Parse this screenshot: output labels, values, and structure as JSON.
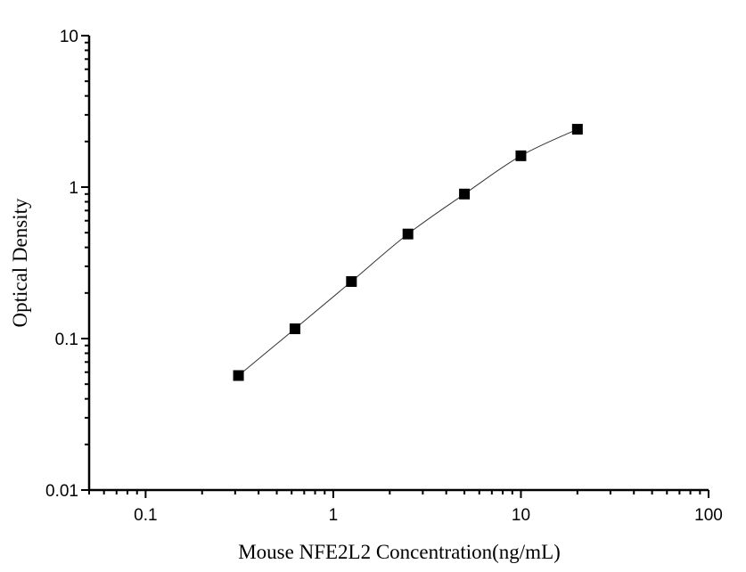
{
  "chart_data": {
    "type": "scatter",
    "title": "",
    "xlabel": "Mouse NFE2L2 Concentration(ng/mL)",
    "ylabel": "Optical Density",
    "xscale": "log",
    "yscale": "log",
    "xlim": [
      0.05,
      100
    ],
    "ylim": [
      0.01,
      10
    ],
    "xticks": [
      {
        "v": 0.1,
        "label": "0.1"
      },
      {
        "v": 1,
        "label": "1"
      },
      {
        "v": 10,
        "label": "10"
      },
      {
        "v": 100,
        "label": "100"
      }
    ],
    "yticks": [
      {
        "v": 0.01,
        "label": "0.01"
      },
      {
        "v": 0.1,
        "label": "0.1"
      },
      {
        "v": 1,
        "label": "1"
      },
      {
        "v": 10,
        "label": "10"
      }
    ],
    "grid": false,
    "marker": "square",
    "fit_curve": true,
    "color": "#000000",
    "x": [
      0.3125,
      0.625,
      1.25,
      2.5,
      5,
      10,
      20
    ],
    "y": [
      0.057,
      0.116,
      0.238,
      0.49,
      0.9,
      1.61,
      2.41
    ]
  }
}
